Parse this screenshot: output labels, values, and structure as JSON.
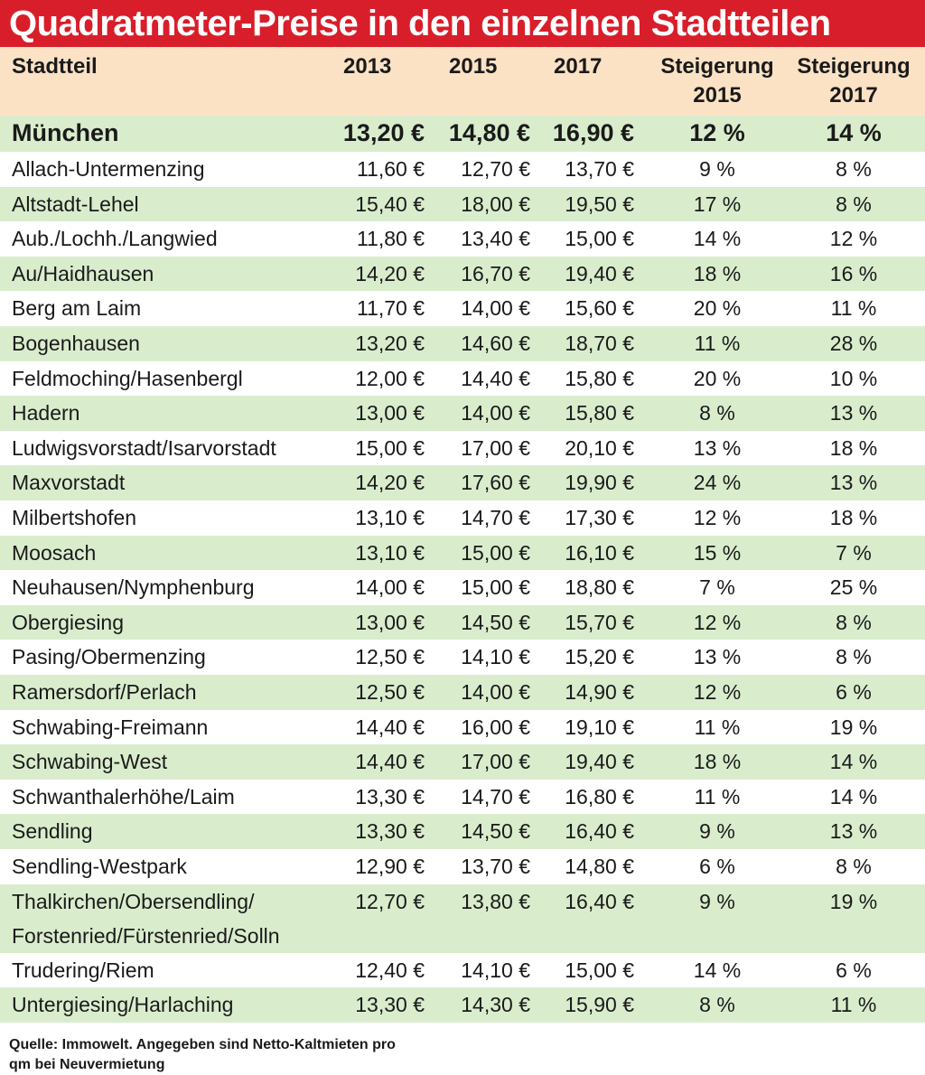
{
  "title": "Quadratmeter-Preise in den einzelnen Stadtteilen",
  "colors": {
    "title_bg": "#d81e2a",
    "header_bg": "#fbe2c5",
    "stripe": "#d9edcd"
  },
  "header": {
    "district": "Stadtteil",
    "y2013": "2013",
    "y2015": "2015",
    "y2017": "2017",
    "inc2015_line1": "Steigerung",
    "inc2015_line2": "2015",
    "inc2017_line1": "Steigerung",
    "inc2017_line2": "2017"
  },
  "total": {
    "name": "München",
    "y2013": "13,20 €",
    "y2015": "14,80 €",
    "y2017": "16,90 €",
    "inc2015": "12 %",
    "inc2017": "14 %"
  },
  "rows": [
    {
      "name": "Allach-Untermenzing",
      "y2013": "11,60 €",
      "y2015": "12,70 €",
      "y2017": "13,70 €",
      "inc2015": "9 %",
      "inc2017": "8 %"
    },
    {
      "name": "Altstadt-Lehel",
      "y2013": "15,40 €",
      "y2015": "18,00 €",
      "y2017": "19,50 €",
      "inc2015": "17 %",
      "inc2017": "8 %"
    },
    {
      "name": "Aub./Lochh./Langwied",
      "y2013": "11,80 €",
      "y2015": "13,40 €",
      "y2017": "15,00 €",
      "inc2015": "14 %",
      "inc2017": "12 %"
    },
    {
      "name": "Au/Haidhausen",
      "y2013": "14,20 €",
      "y2015": "16,70 €",
      "y2017": "19,40 €",
      "inc2015": "18 %",
      "inc2017": "16 %"
    },
    {
      "name": "Berg am Laim",
      "y2013": "11,70 €",
      "y2015": "14,00 €",
      "y2017": "15,60 €",
      "inc2015": "20 %",
      "inc2017": "11 %"
    },
    {
      "name": "Bogenhausen",
      "y2013": "13,20 €",
      "y2015": "14,60 €",
      "y2017": "18,70 €",
      "inc2015": "11 %",
      "inc2017": "28 %"
    },
    {
      "name": "Feldmoching/Hasenbergl",
      "y2013": "12,00 €",
      "y2015": "14,40 €",
      "y2017": "15,80 €",
      "inc2015": "20 %",
      "inc2017": "10 %"
    },
    {
      "name": "Hadern",
      "y2013": "13,00 €",
      "y2015": "14,00 €",
      "y2017": "15,80 €",
      "inc2015": "8 %",
      "inc2017": "13 %"
    },
    {
      "name": "Ludwigsvorstadt/Isarvorstadt",
      "y2013": "15,00 €",
      "y2015": "17,00 €",
      "y2017": "20,10 €",
      "inc2015": "13 %",
      "inc2017": "18 %"
    },
    {
      "name": "Maxvorstadt",
      "y2013": "14,20 €",
      "y2015": "17,60 €",
      "y2017": "19,90 €",
      "inc2015": "24 %",
      "inc2017": "13 %"
    },
    {
      "name": "Milbertshofen",
      "y2013": "13,10 €",
      "y2015": "14,70 €",
      "y2017": "17,30 €",
      "inc2015": "12 %",
      "inc2017": "18 %"
    },
    {
      "name": "Moosach",
      "y2013": "13,10 €",
      "y2015": "15,00 €",
      "y2017": "16,10 €",
      "inc2015": "15 %",
      "inc2017": "7 %"
    },
    {
      "name": "Neuhausen/Nymphenburg",
      "y2013": "14,00 €",
      "y2015": "15,00 €",
      "y2017": "18,80 €",
      "inc2015": "7 %",
      "inc2017": "25 %"
    },
    {
      "name": "Obergiesing",
      "y2013": "13,00 €",
      "y2015": "14,50 €",
      "y2017": "15,70 €",
      "inc2015": "12 %",
      "inc2017": "8 %"
    },
    {
      "name": "Pasing/Obermenzing",
      "y2013": "12,50 €",
      "y2015": "14,10 €",
      "y2017": "15,20 €",
      "inc2015": "13 %",
      "inc2017": "8 %"
    },
    {
      "name": "Ramersdorf/Perlach",
      "y2013": "12,50 €",
      "y2015": "14,00 €",
      "y2017": "14,90 €",
      "inc2015": "12 %",
      "inc2017": "6 %"
    },
    {
      "name": "Schwabing-Freimann",
      "y2013": "14,40 €",
      "y2015": "16,00 €",
      "y2017": "19,10 €",
      "inc2015": "11 %",
      "inc2017": "19 %"
    },
    {
      "name": "Schwabing-West",
      "y2013": "14,40 €",
      "y2015": "17,00 €",
      "y2017": "19,40 €",
      "inc2015": "18 %",
      "inc2017": "14 %"
    },
    {
      "name": "Schwanthalerhöhe/Laim",
      "y2013": "13,30 €",
      "y2015": "14,70 €",
      "y2017": "16,80 €",
      "inc2015": "11 %",
      "inc2017": "14 %"
    },
    {
      "name": "Sendling",
      "y2013": "13,30 €",
      "y2015": "14,50 €",
      "y2017": "16,40 €",
      "inc2015": "9 %",
      "inc2017": "13 %"
    },
    {
      "name": "Sendling-Westpark",
      "y2013": "12,90 €",
      "y2015": "13,70 €",
      "y2017": "14,80 €",
      "inc2015": "6 %",
      "inc2017": "8 %"
    },
    {
      "name": "Thalkirchen/Obersendling/",
      "name2": "Forstenried/Fürstenried/Solln",
      "y2013": "12,70 €",
      "y2015": "13,80 €",
      "y2017": "16,40 €",
      "inc2015": "9 %",
      "inc2017": "19 %"
    },
    {
      "name": "Trudering/Riem",
      "y2013": "12,40 €",
      "y2015": "14,10 €",
      "y2017": "15,00 €",
      "inc2015": "14 %",
      "inc2017": "6 %"
    },
    {
      "name": "Untergiesing/Harlaching",
      "y2013": "13,30 €",
      "y2015": "14,30 €",
      "y2017": "15,90 €",
      "inc2015": "8 %",
      "inc2017": "11 %"
    }
  ],
  "footnote": {
    "line1": "Quelle: Immowelt. Angegeben sind Netto-Kaltmieten pro",
    "line2": "qm bei Neuvermietung"
  }
}
